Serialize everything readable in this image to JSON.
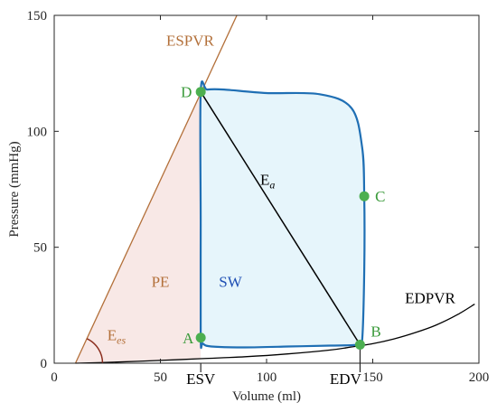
{
  "chart_data": {
    "type": "line",
    "title": "",
    "xlabel": "Volume (ml)",
    "ylabel": "Pressure (mmHg)",
    "xlim": [
      0,
      200
    ],
    "ylim": [
      0,
      150
    ],
    "xticks": [
      0,
      50,
      100,
      150,
      200
    ],
    "yticks": [
      0,
      50,
      100,
      150
    ],
    "grid": false,
    "colors": {
      "loop": "#1f6fb4",
      "loop_fill": "#e6f5fb",
      "espvr": "#b3703a",
      "pe_fill": "#f8e8e6",
      "edpvr": "#000000",
      "ea": "#000000",
      "points": "#4caf50",
      "point_labels": "#3a9a3a",
      "sw_label": "#1f4fb4",
      "pe_label": "#b3703a"
    },
    "series": [
      {
        "name": "ESPVR",
        "points": [
          [
            10,
            0
          ],
          [
            86,
            150
          ]
        ]
      },
      {
        "name": "EDPVR",
        "points": [
          [
            10,
            0
          ],
          [
            30,
            0.5
          ],
          [
            50,
            1.2
          ],
          [
            70,
            2.0
          ],
          [
            90,
            2.8
          ],
          [
            110,
            4.0
          ],
          [
            130,
            5.7
          ],
          [
            140,
            7.0
          ],
          [
            150,
            8.4
          ],
          [
            160,
            10.5
          ],
          [
            170,
            13.2
          ],
          [
            180,
            16.5
          ],
          [
            190,
            21.0
          ],
          [
            198,
            25.5
          ]
        ]
      },
      {
        "name": "Ea",
        "points": [
          [
            69,
            117
          ],
          [
            144,
            8
          ]
        ]
      },
      {
        "name": "PV loop",
        "points": [
          [
            69,
            11
          ],
          [
            70,
            8.5
          ],
          [
            74,
            7.2
          ],
          [
            90,
            6.8
          ],
          [
            110,
            7.2
          ],
          [
            130,
            7.6
          ],
          [
            143,
            8.0
          ],
          [
            145,
            10
          ],
          [
            146,
            40
          ],
          [
            146,
            72
          ],
          [
            145,
            93
          ],
          [
            140,
            110
          ],
          [
            125,
            116
          ],
          [
            100,
            116.5
          ],
          [
            80,
            118
          ],
          [
            72,
            118
          ],
          [
            69,
            117
          ],
          [
            69,
            60
          ],
          [
            69,
            11
          ]
        ]
      }
    ],
    "key_points": [
      {
        "label": "A",
        "x": 69,
        "y": 11
      },
      {
        "label": "B",
        "x": 144,
        "y": 8
      },
      {
        "label": "C",
        "x": 146,
        "y": 72
      },
      {
        "label": "D",
        "x": 69,
        "y": 117
      }
    ],
    "annotations": [
      {
        "text": "ESPVR",
        "x": 64,
        "y": 137
      },
      {
        "text": "EDPVR",
        "x": 177,
        "y": 26
      },
      {
        "text": "E",
        "sub": "a",
        "x": 97,
        "y": 77
      },
      {
        "text": "E",
        "sub": "es",
        "x": 25,
        "y": 10
      },
      {
        "text": "PE",
        "x": 50,
        "y": 33
      },
      {
        "text": "SW",
        "x": 83,
        "y": 33
      }
    ],
    "volume_markers": [
      {
        "label": "ESV",
        "x": 69
      },
      {
        "label": "EDV",
        "x": 144
      }
    ]
  }
}
